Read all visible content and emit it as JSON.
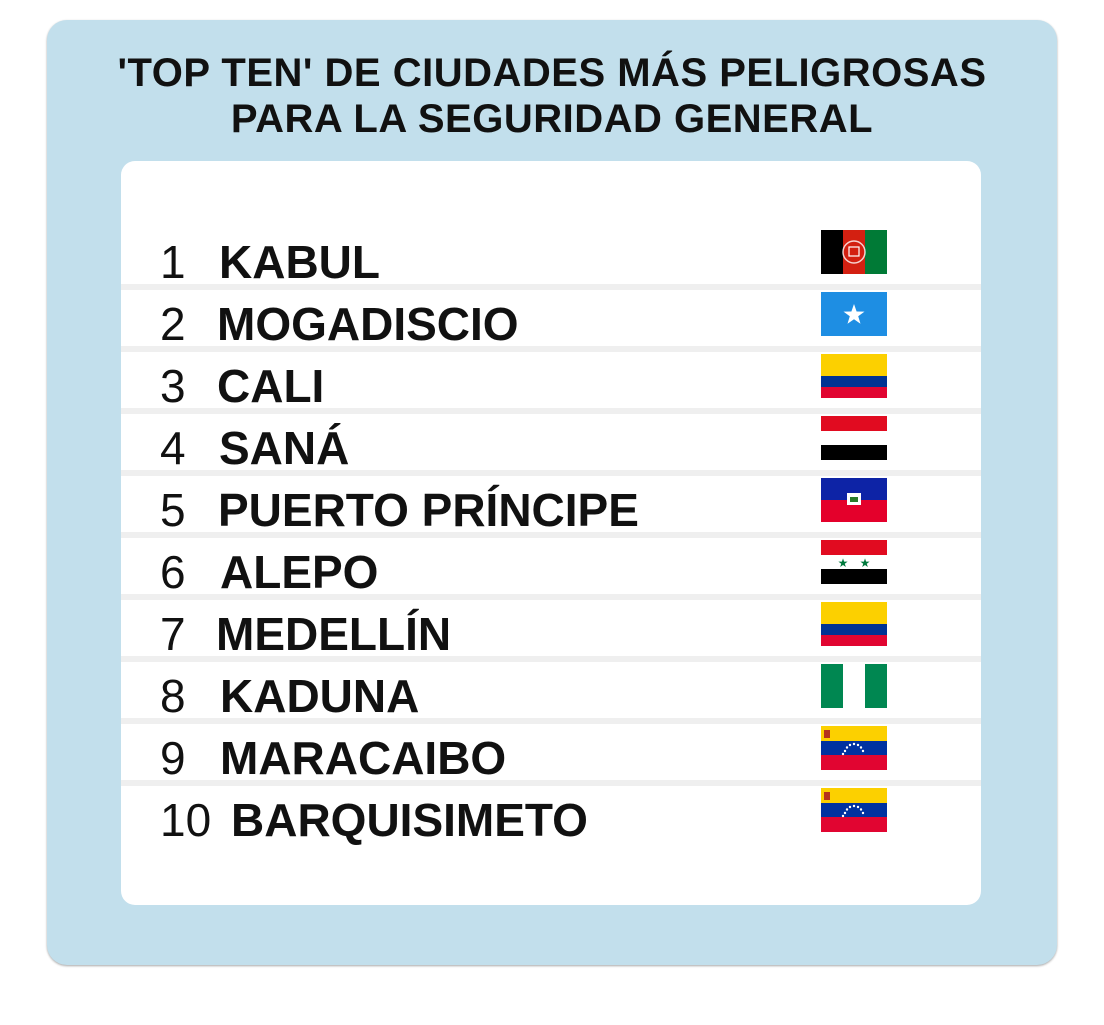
{
  "title_line1": "'TOP TEN' DE CIUDADES MÁS PELIGROSAS",
  "title_line2": "PARA LA SEGURIDAD GENERAL",
  "colors": {
    "background": "#c2dfec",
    "card": "#ffffff",
    "separator": "#efefef",
    "text": "#111111"
  },
  "ranking": [
    {
      "rank": "1",
      "city": "KABUL",
      "flag": "afghanistan-flag"
    },
    {
      "rank": "2",
      "city": "MOGADISCIO",
      "flag": "somalia-flag"
    },
    {
      "rank": "3",
      "city": "CALI",
      "flag": "colombia-flag"
    },
    {
      "rank": "4",
      "city": "SANÁ",
      "flag": "yemen-flag"
    },
    {
      "rank": "5",
      "city": "PUERTO PRÍNCIPE",
      "flag": "haiti-flag"
    },
    {
      "rank": "6",
      "city": "ALEPO",
      "flag": "syria-flag"
    },
    {
      "rank": "7",
      "city": "MEDELLÍN",
      "flag": "colombia-flag"
    },
    {
      "rank": "8",
      "city": "KADUNA",
      "flag": "nigeria-flag"
    },
    {
      "rank": "9",
      "city": "MARACAIBO",
      "flag": "venezuela-flag"
    },
    {
      "rank": "10",
      "city": "BARQUISIMETO",
      "flag": "venezuela-flag"
    }
  ]
}
